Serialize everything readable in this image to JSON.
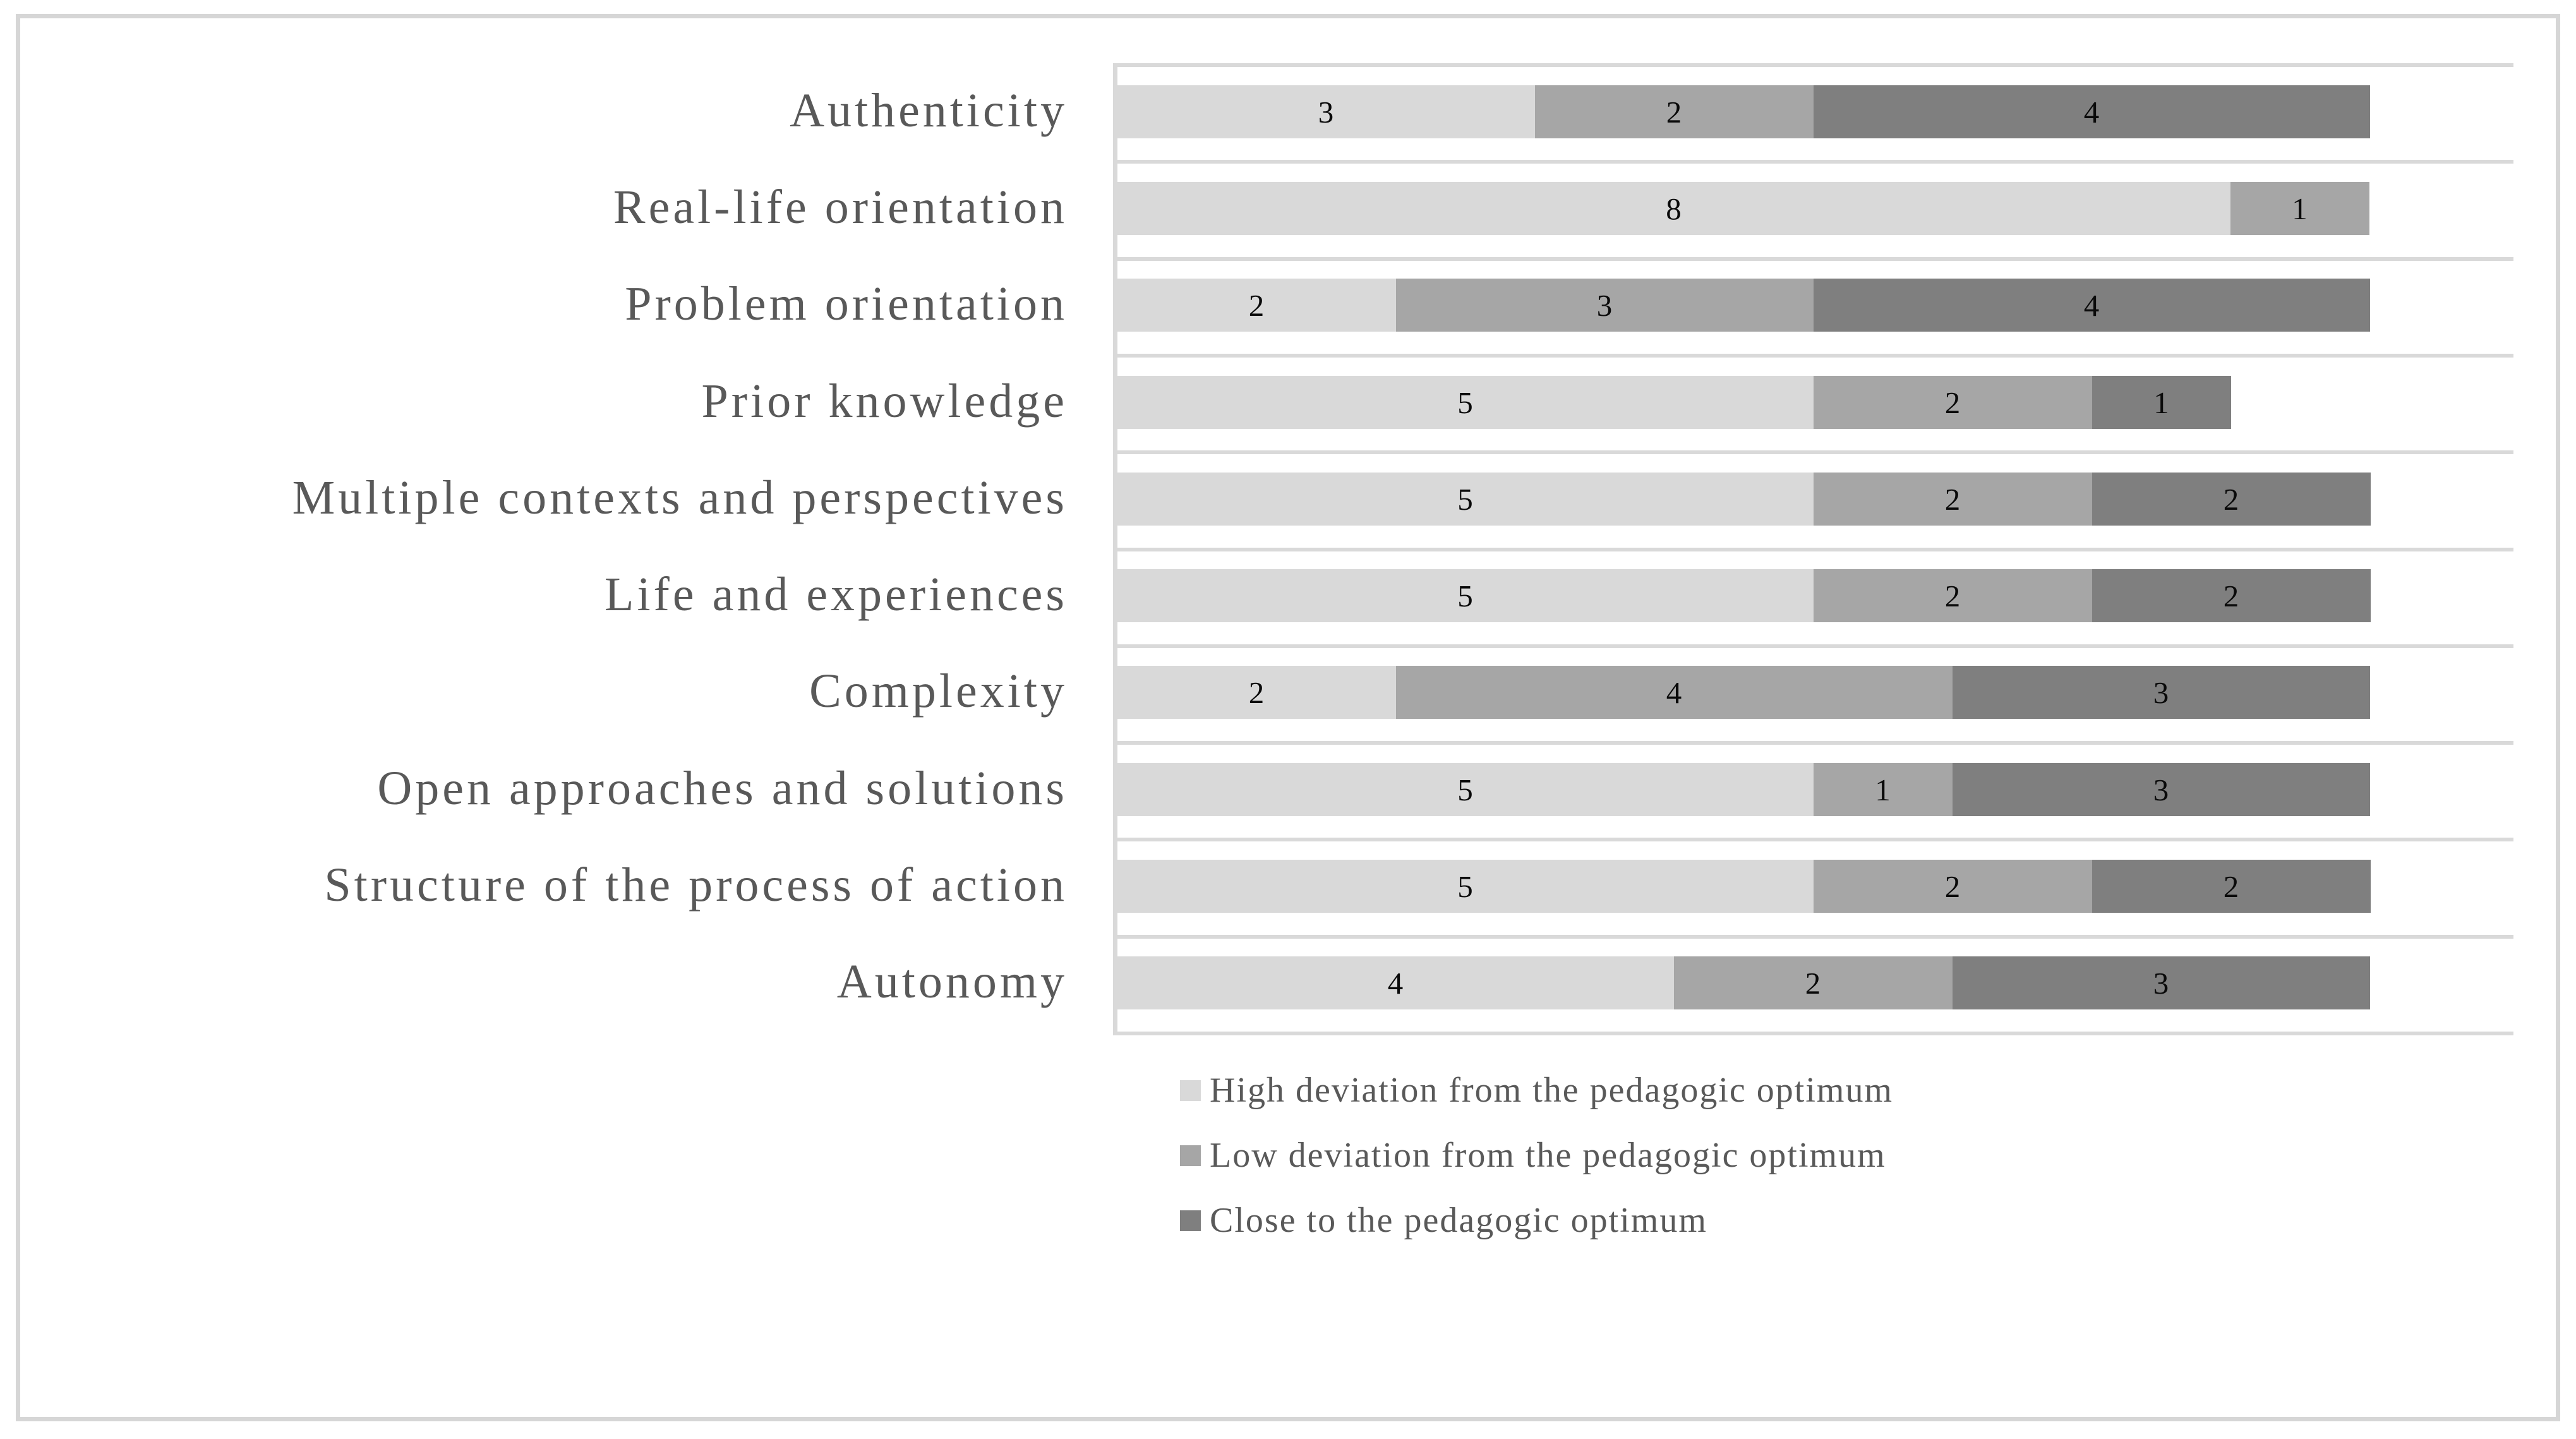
{
  "figure": {
    "kind": "horizontal stacked bar chart figure with bottom-left legend, framed panel",
    "background": "#ffffff",
    "frame_border_color": "#d6d6d6",
    "gridline_color": "#d9d9d9",
    "category_label_color": "#595959",
    "value_label_color": "#0a0a0a",
    "legend_text_color": "#595959"
  },
  "chart_data": {
    "type": "bar",
    "orientation": "horizontal-stacked",
    "title": "",
    "xlabel": "",
    "ylabel": "",
    "xlim": [
      0,
      10
    ],
    "grid": "row-boundary horizontal gridlines only, no tick labels",
    "legend_position": "bottom-left",
    "categories": [
      "Authenticity",
      "Real-life orientation",
      "Problem orientation",
      "Prior knowledge",
      "Multiple contexts and perspectives",
      "Life and experiences",
      "Complexity",
      "Open approaches and solutions",
      "Structure of the process of action",
      "Autonomy"
    ],
    "series": [
      {
        "name": "High deviation from the pedagogic optimum",
        "color": "#d9d9d9",
        "values": [
          3,
          8,
          2,
          5,
          5,
          5,
          2,
          5,
          5,
          4
        ]
      },
      {
        "name": "Low deviation from the pedagogic optimum",
        "color": "#a6a6a6",
        "values": [
          2,
          1,
          3,
          2,
          2,
          2,
          4,
          1,
          2,
          2
        ]
      },
      {
        "name": "Close to the pedagogic optimum",
        "color": "#7f7f7f",
        "values": [
          4,
          0,
          4,
          1,
          2,
          2,
          3,
          3,
          2,
          3
        ]
      }
    ],
    "totals": [
      9,
      9,
      9,
      8,
      9,
      9,
      9,
      9,
      9,
      9
    ]
  }
}
